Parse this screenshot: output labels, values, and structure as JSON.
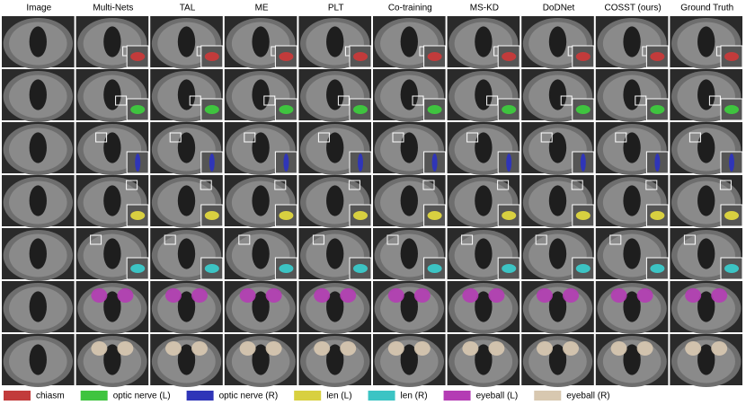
{
  "columns": [
    "Image",
    "Multi-Nets",
    "TAL",
    "ME",
    "PLT",
    "Co-training",
    "MS-KD",
    "DoDNet",
    "COSST (ours)",
    "Ground Truth"
  ],
  "legend": [
    {
      "name": "chiasm",
      "color": "#c23b3b"
    },
    {
      "name": "optic nerve (L)",
      "color": "#3fc43f"
    },
    {
      "name": "optic nerve (R)",
      "color": "#2f35b8"
    },
    {
      "name": "len (L)",
      "color": "#d8d040"
    },
    {
      "name": "len (R)",
      "color": "#3cc4c4"
    },
    {
      "name": "eyeball (L)",
      "color": "#b43cb4"
    },
    {
      "name": "eyeball (R)",
      "color": "#d8c8b0"
    }
  ]
}
